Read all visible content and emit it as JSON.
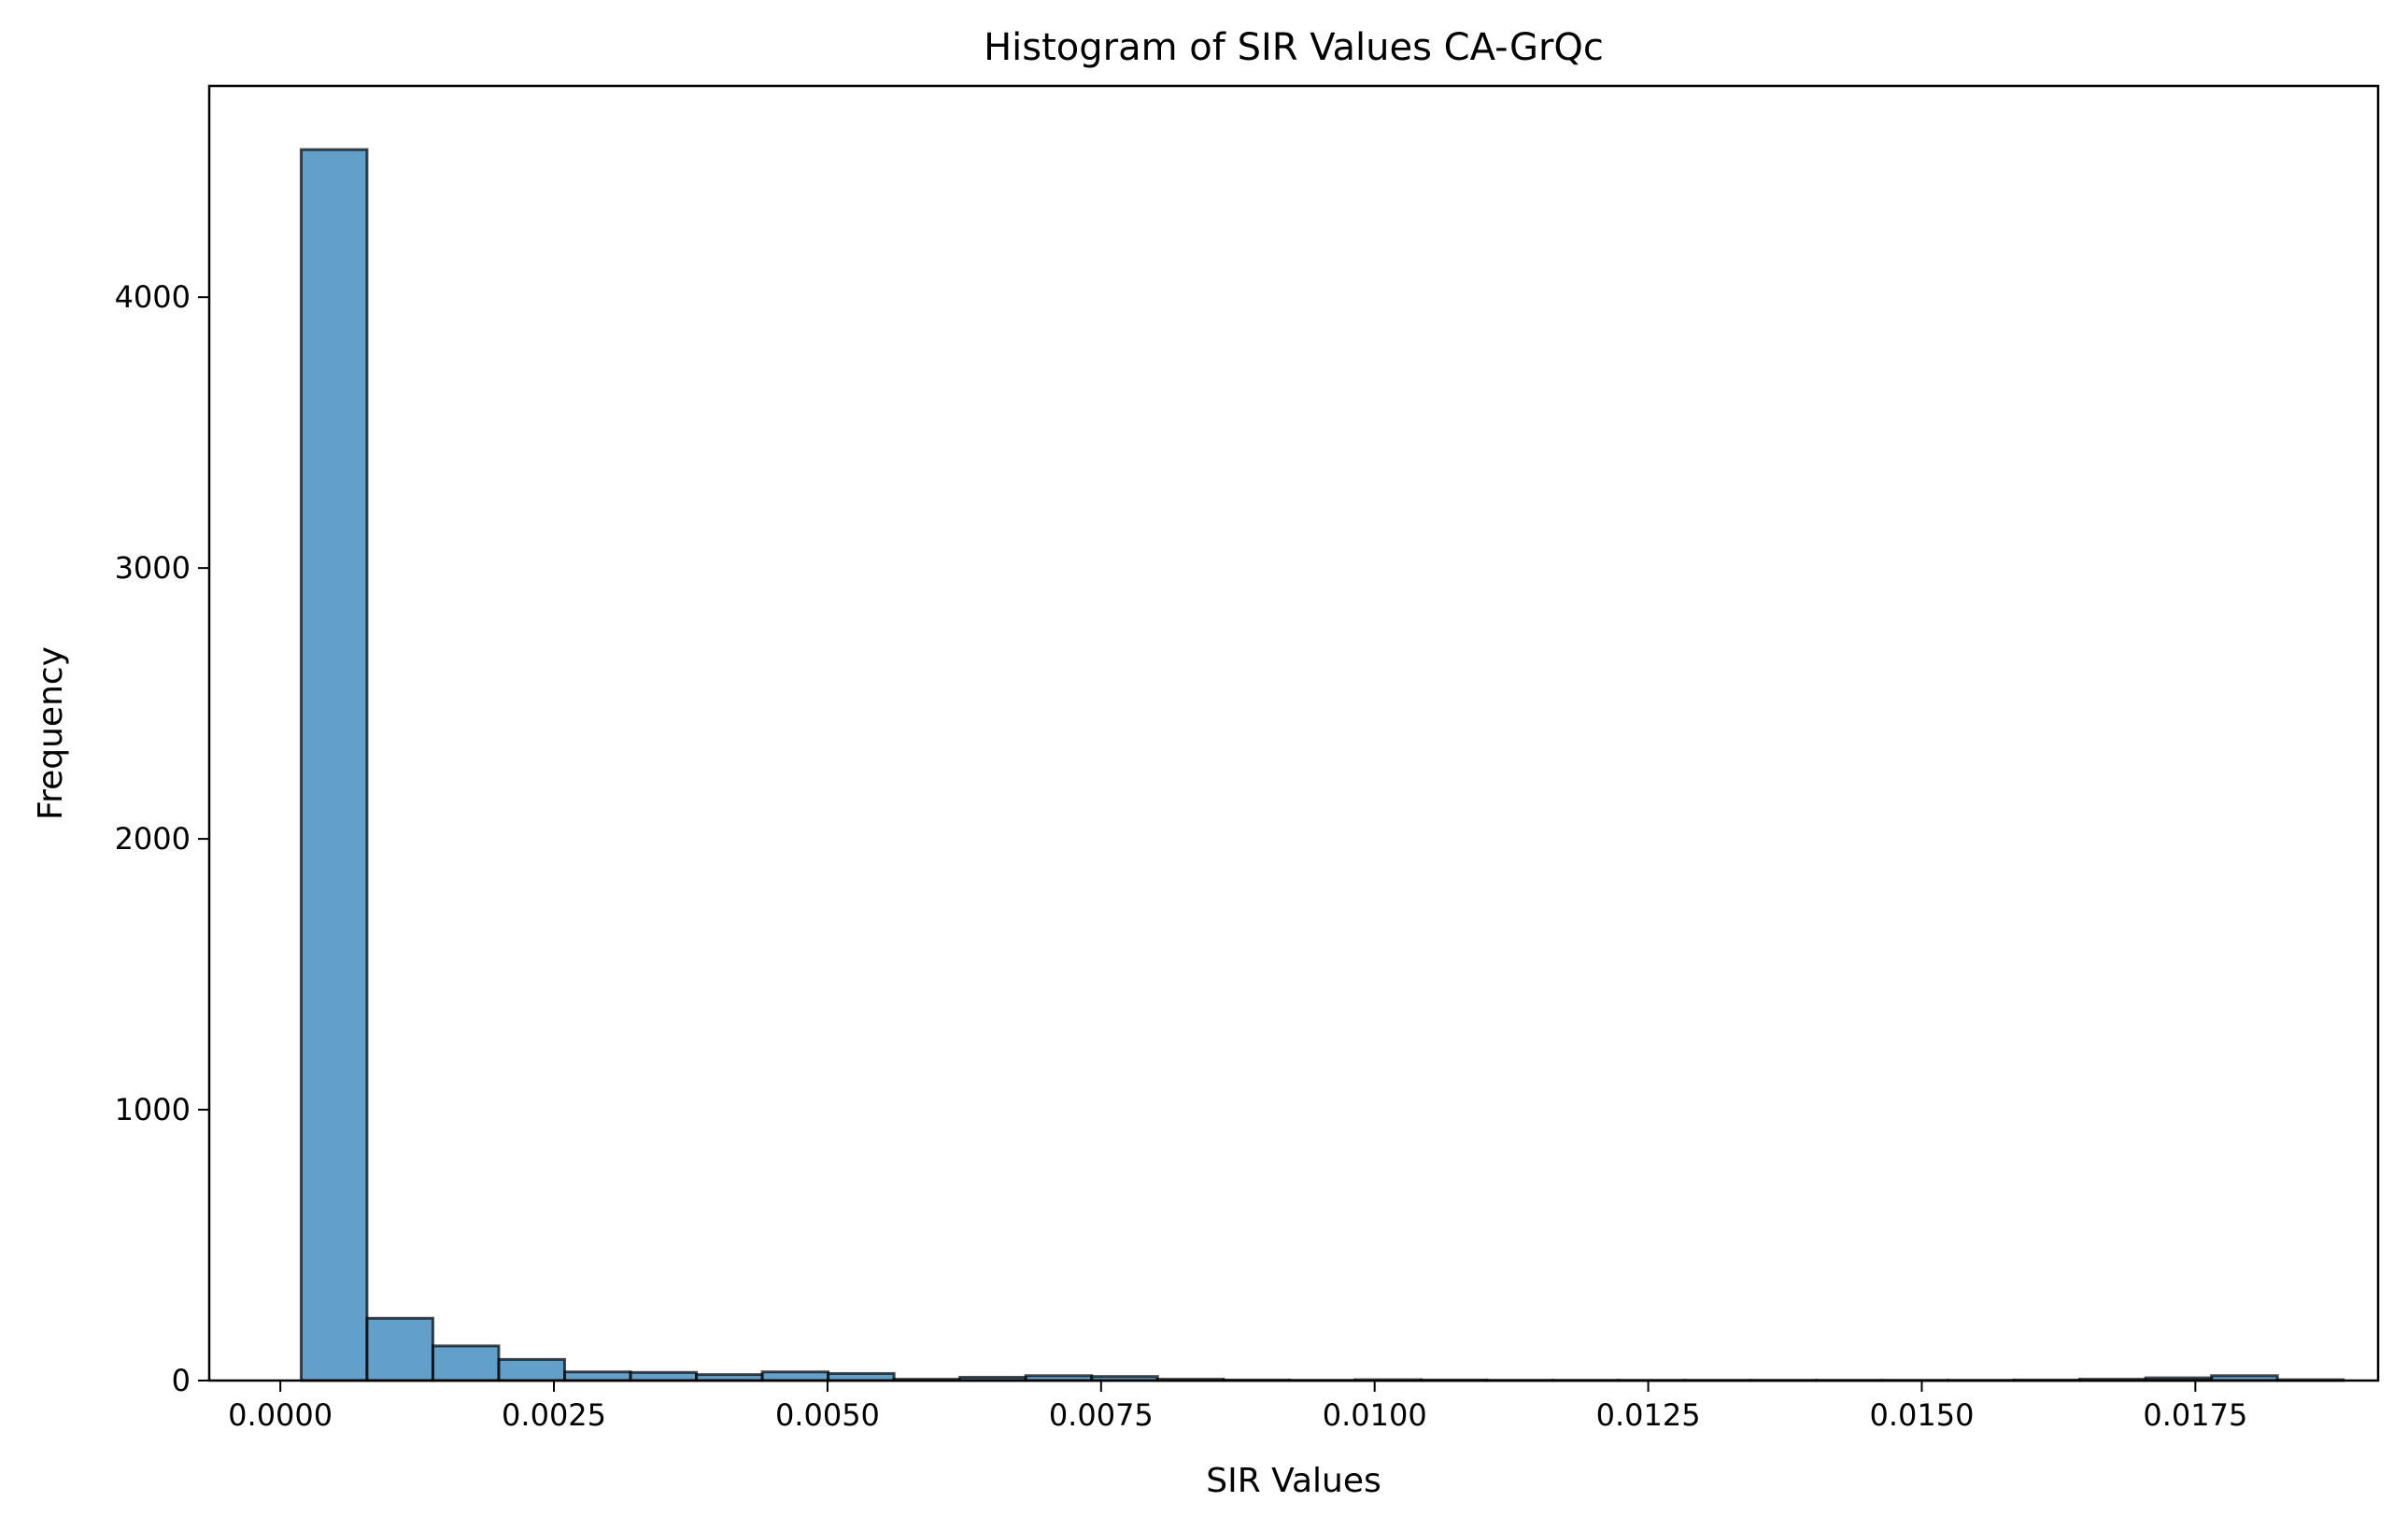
{
  "chart_data": {
    "type": "histogram",
    "title": "Histogram of SIR Values CA-GrQc",
    "xlabel": "SIR Values",
    "ylabel": "Frequency",
    "xlim": [
      -0.00065,
      0.01917
    ],
    "ylim": [
      0,
      4780
    ],
    "xticks": [
      {
        "value": 0.0,
        "label": "0.0000"
      },
      {
        "value": 0.0025,
        "label": "0.0025"
      },
      {
        "value": 0.005,
        "label": "0.0050"
      },
      {
        "value": 0.0075,
        "label": "0.0075"
      },
      {
        "value": 0.01,
        "label": "0.0100"
      },
      {
        "value": 0.0125,
        "label": "0.0125"
      },
      {
        "value": 0.015,
        "label": "0.0150"
      },
      {
        "value": 0.0175,
        "label": "0.0175"
      }
    ],
    "yticks": [
      {
        "value": 0,
        "label": "0"
      },
      {
        "value": 1000,
        "label": "1000"
      },
      {
        "value": 2000,
        "label": "2000"
      },
      {
        "value": 3000,
        "label": "3000"
      },
      {
        "value": 4000,
        "label": "4000"
      }
    ],
    "bin_start": 0.00019,
    "bin_width": 0.000602,
    "counts": [
      4545,
      230,
      128,
      78,
      32,
      30,
      22,
      32,
      26,
      5,
      12,
      18,
      15,
      5,
      2,
      1,
      3,
      2,
      1,
      1,
      1,
      1,
      1,
      1,
      1,
      1,
      2,
      5,
      10,
      18,
      3
    ],
    "grid": false,
    "colors": {
      "bar_fill": "#1f77b4",
      "bar_fill_opacity": 0.7,
      "bar_edge": "#000000",
      "axes": "#000000",
      "background": "#ffffff"
    }
  }
}
